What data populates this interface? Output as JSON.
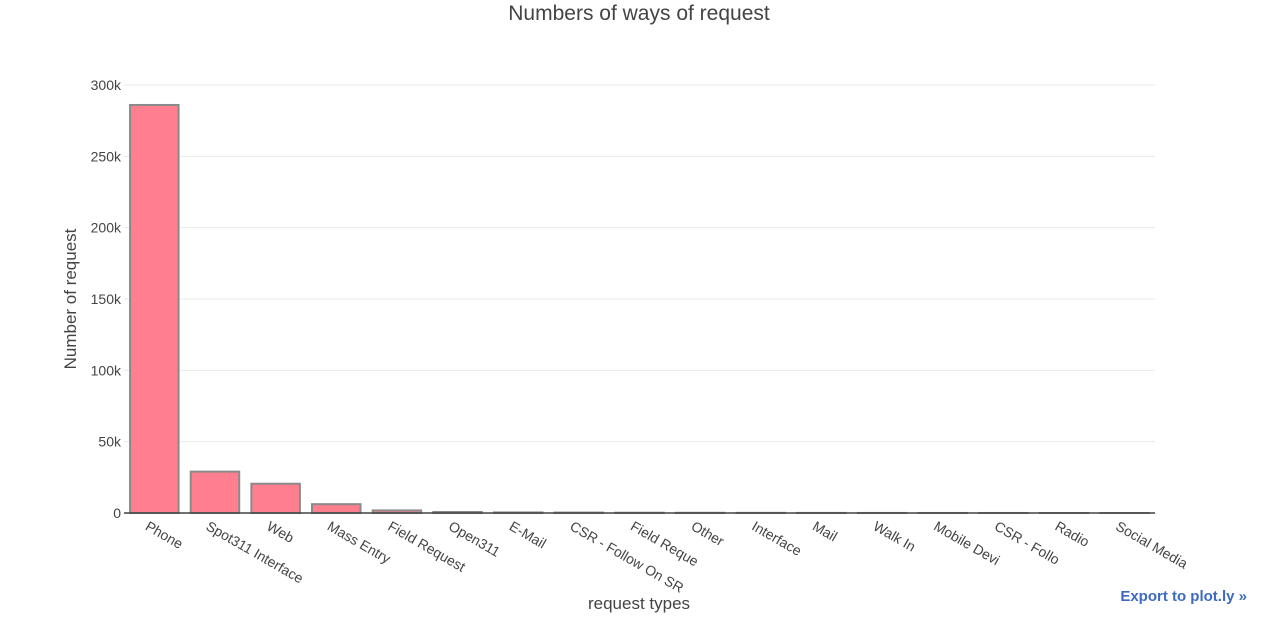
{
  "export_label": "Export to plot.ly »",
  "colors": {
    "bar_fill": "#ff7f8e",
    "bar_stroke": "#8a8a8a",
    "grid": "#e9e9e9",
    "axis": "#444444",
    "text": "#444444",
    "link": "#3d6bbf"
  },
  "chart_data": {
    "type": "bar",
    "title": "Numbers of ways of request",
    "xlabel": "request types",
    "ylabel": "Number of request",
    "ylim": [
      0,
      300000
    ],
    "yticks": [
      0,
      50000,
      100000,
      150000,
      200000,
      250000,
      300000
    ],
    "ytick_labels": [
      "0",
      "50k",
      "100k",
      "150k",
      "200k",
      "250k",
      "300k"
    ],
    "grid": true,
    "categories": [
      "Phone",
      "Spot311 Interface",
      "Web",
      "Mass Entry",
      "Field Request",
      "Open311",
      "E-Mail",
      "CSR - Follow On SR",
      "Field Reque",
      "Other",
      "Interface",
      "Mail",
      "Walk In",
      "Mobile Devi",
      "CSR - Follo",
      "Radio",
      "Social Media"
    ],
    "values": [
      286000,
      29000,
      20500,
      6200,
      1800,
      700,
      400,
      300,
      200,
      150,
      100,
      60,
      40,
      20,
      15,
      10,
      5
    ]
  }
}
